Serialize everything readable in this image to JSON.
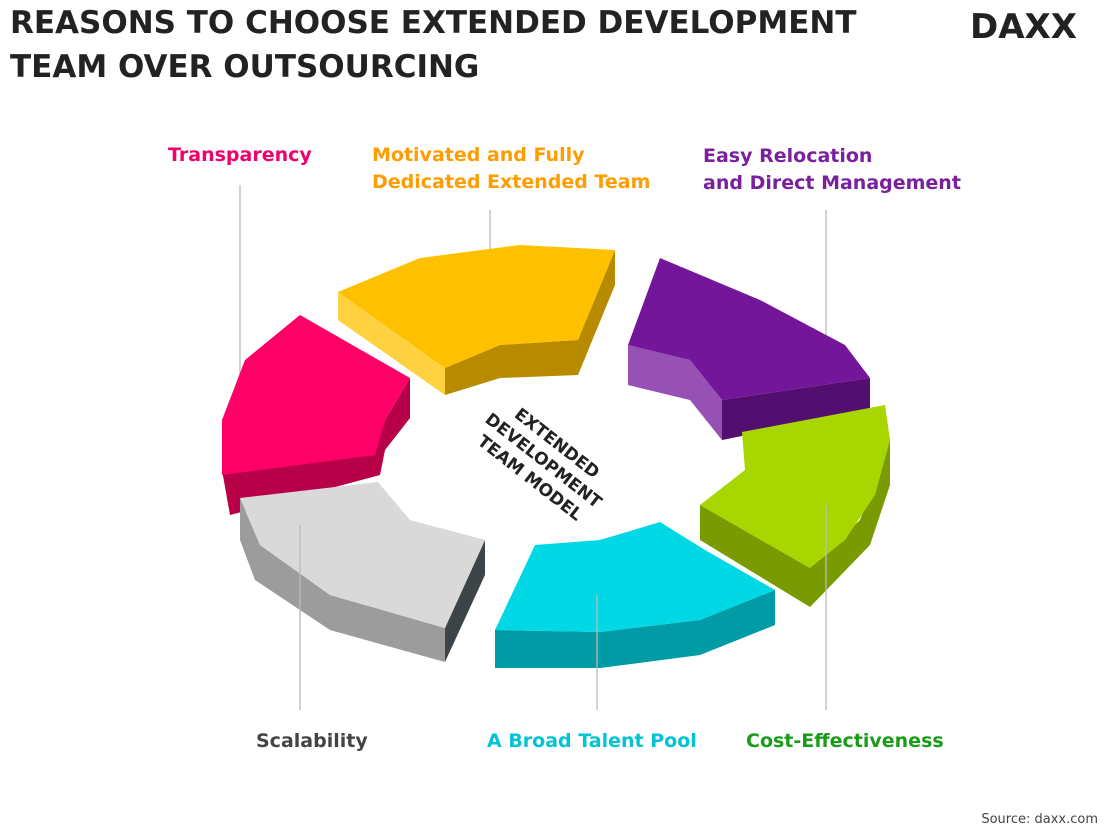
{
  "header": {
    "title_lines": [
      "REASONS TO CHOOSE EXTENDED DEVELOPMENT",
      "TEAM OVER OUTSOURCING"
    ],
    "logo": "DAXX"
  },
  "center_label": [
    "EXTENDED",
    "DEVELOPMENT",
    "TEAM MODEL"
  ],
  "segments": [
    {
      "label_lines": [
        "Transparency"
      ],
      "color": "#ff0066",
      "label_color": "#f0006a"
    },
    {
      "label_lines": [
        "Motivated and Fully",
        "Dedicated Extended Team"
      ],
      "color": "#ffc000",
      "label_color": "#ff9c00"
    },
    {
      "label_lines": [
        "Easy Relocation",
        "and Direct Management"
      ],
      "color": "#74169a",
      "label_color": "#7a1f9e"
    },
    {
      "label_lines": [
        "Cost-Effectiveness"
      ],
      "color": "#a8d600",
      "label_color": "#1a9c1a"
    },
    {
      "label_lines": [
        "A Broad Talent Pool"
      ],
      "color": "#00d8e6",
      "label_color": "#00c4d4"
    },
    {
      "label_lines": [
        "Scalability"
      ],
      "color": "#d9d9d9",
      "label_color": "#444444"
    }
  ],
  "source": "Source: daxx.com"
}
